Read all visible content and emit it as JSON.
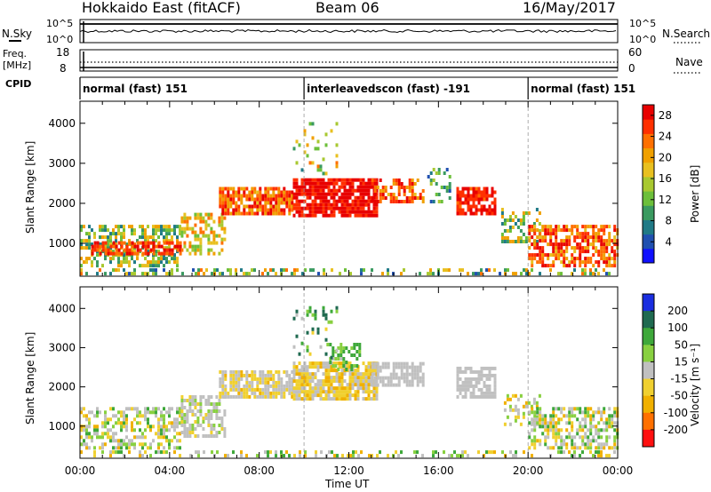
{
  "header": {
    "station": "Hokkaido East (fitACF)",
    "beam": "Beam 06",
    "date": "16/May/2017"
  },
  "noise_panel": {
    "left_label": "N.Sky",
    "left_ticks": [
      "10^5",
      "10^0"
    ],
    "right_label": "N.Search",
    "right_ticks": [
      "10^5",
      "10^0"
    ]
  },
  "freq_panel": {
    "left_label_line1": "Freq.",
    "left_label_line2": "[MHz]",
    "left_ticks": [
      "18",
      "8"
    ],
    "right_label": "Nave",
    "right_ticks": [
      "60",
      "0"
    ]
  },
  "cpid_panel": {
    "label": "CPID",
    "segments": [
      {
        "name": "normal (fast) 151",
        "start_hour": 0,
        "end_hour": 10
      },
      {
        "name": "interleavedscon (fast) -191",
        "start_hour": 10,
        "end_hour": 20
      },
      {
        "name": "normal (fast) 151",
        "start_hour": 20,
        "end_hour": 24
      }
    ]
  },
  "x_axis": {
    "label": "Time UT",
    "ticks": [
      "00:00",
      "04:00",
      "08:00",
      "12:00",
      "16:00",
      "20:00",
      "00:00"
    ]
  },
  "chart_data": [
    {
      "type": "heatmap",
      "title": "",
      "xlabel": "",
      "ylabel": "Slant Range [km]",
      "xlim_hours": [
        0,
        24
      ],
      "ylim": [
        180,
        4550
      ],
      "y_ticks": [
        1000,
        2000,
        3000,
        4000
      ],
      "colorbar": {
        "label": "Power [dB]",
        "range": [
          0,
          30
        ],
        "ticks": [
          4,
          8,
          12,
          16,
          20,
          24,
          28
        ],
        "colors": [
          "#1010ff",
          "#2050b0",
          "#207a86",
          "#3a9a60",
          "#6cbf3a",
          "#a8c830",
          "#e8c020",
          "#f0a000",
          "#ff7000",
          "#ff3000",
          "#e80000"
        ]
      },
      "backscatter_regions": [
        {
          "t0": 0.0,
          "t1": 4.5,
          "r0": 400,
          "r1": 1450,
          "level": 14,
          "spread": 8,
          "density": 0.55
        },
        {
          "t0": 0.5,
          "t1": 4.5,
          "r0": 700,
          "r1": 1050,
          "level": 26,
          "spread": 4,
          "density": 0.65
        },
        {
          "t0": 4.5,
          "t1": 6.5,
          "r0": 700,
          "r1": 1700,
          "level": 18,
          "spread": 6,
          "density": 0.5
        },
        {
          "t0": 6.2,
          "t1": 9.5,
          "r0": 1700,
          "r1": 2400,
          "level": 24,
          "spread": 5,
          "density": 0.8
        },
        {
          "t0": 9.5,
          "t1": 13.2,
          "r0": 1650,
          "r1": 2600,
          "level": 28,
          "spread": 3,
          "density": 0.85
        },
        {
          "t0": 13.0,
          "t1": 15.3,
          "r0": 2000,
          "r1": 2600,
          "level": 24,
          "spread": 6,
          "density": 0.6
        },
        {
          "t0": 15.5,
          "t1": 16.5,
          "r0": 2000,
          "r1": 2800,
          "level": 10,
          "spread": 6,
          "density": 0.35
        },
        {
          "t0": 16.8,
          "t1": 18.5,
          "r0": 1700,
          "r1": 2400,
          "level": 27,
          "spread": 3,
          "density": 0.75
        },
        {
          "t0": 18.8,
          "t1": 20.5,
          "r0": 1000,
          "r1": 1800,
          "level": 14,
          "spread": 8,
          "density": 0.35
        },
        {
          "t0": 20.0,
          "t1": 24.0,
          "r0": 400,
          "r1": 1400,
          "level": 24,
          "spread": 6,
          "density": 0.65
        },
        {
          "t0": 9.5,
          "t1": 11.5,
          "r0": 2700,
          "r1": 4000,
          "level": 16,
          "spread": 8,
          "density": 0.12
        },
        {
          "t0": 0.0,
          "t1": 24.0,
          "r0": 200,
          "r1": 320,
          "level": 14,
          "spread": 10,
          "density": 0.35
        }
      ]
    },
    {
      "type": "heatmap",
      "title": "",
      "xlabel": "",
      "ylabel": "Slant Range [km]",
      "xlim_hours": [
        0,
        24
      ],
      "ylim": [
        180,
        4550
      ],
      "y_ticks": [
        1000,
        2000,
        3000,
        4000
      ],
      "colorbar": {
        "label": "Velocity [m s⁻¹]",
        "range": [
          -250,
          250
        ],
        "ticks": [
          200,
          100,
          50,
          15,
          -15,
          -50,
          -100,
          -200
        ],
        "bands": [
          {
            "from": 150,
            "to": 250,
            "color": "#1a2ee0"
          },
          {
            "from": 75,
            "to": 150,
            "color": "#1f6a50"
          },
          {
            "from": 32,
            "to": 75,
            "color": "#3ea83a"
          },
          {
            "from": 15,
            "to": 32,
            "color": "#88d040"
          },
          {
            "from": -15,
            "to": 15,
            "color": "#c0c0c0"
          },
          {
            "from": -32,
            "to": -15,
            "color": "#f0d030"
          },
          {
            "from": -75,
            "to": -32,
            "color": "#f0b000"
          },
          {
            "from": -150,
            "to": -75,
            "color": "#ff7000"
          },
          {
            "from": -250,
            "to": -150,
            "color": "#ff1010"
          }
        ]
      },
      "backscatter_regions": [
        {
          "t0": 0.0,
          "t1": 4.5,
          "r0": 400,
          "r1": 1450,
          "level": 0,
          "spread": 40,
          "density": 0.5
        },
        {
          "t0": 4.5,
          "t1": 6.5,
          "r0": 700,
          "r1": 1700,
          "level": 0,
          "spread": 20,
          "density": 0.55
        },
        {
          "t0": 6.2,
          "t1": 9.5,
          "r0": 1700,
          "r1": 2400,
          "level": -10,
          "spread": 25,
          "density": 0.8
        },
        {
          "t0": 9.5,
          "t1": 13.2,
          "r0": 1650,
          "r1": 2600,
          "level": -20,
          "spread": 20,
          "density": 0.8
        },
        {
          "t0": 11.0,
          "t1": 12.5,
          "r0": 2400,
          "r1": 3100,
          "level": 40,
          "spread": 30,
          "density": 0.45
        },
        {
          "t0": 13.0,
          "t1": 15.3,
          "r0": 2000,
          "r1": 2600,
          "level": 0,
          "spread": 10,
          "density": 0.7
        },
        {
          "t0": 16.8,
          "t1": 18.5,
          "r0": 1700,
          "r1": 2500,
          "level": 0,
          "spread": 10,
          "density": 0.7
        },
        {
          "t0": 18.8,
          "t1": 20.5,
          "r0": 1000,
          "r1": 1800,
          "level": -10,
          "spread": 40,
          "density": 0.35
        },
        {
          "t0": 20.0,
          "t1": 24.0,
          "r0": 400,
          "r1": 1400,
          "level": 0,
          "spread": 45,
          "density": 0.6
        },
        {
          "t0": 9.5,
          "t1": 11.5,
          "r0": 2700,
          "r1": 4000,
          "level": 60,
          "spread": 80,
          "density": 0.12
        },
        {
          "t0": 0.0,
          "t1": 24.0,
          "r0": 200,
          "r1": 320,
          "level": 0,
          "spread": 60,
          "density": 0.3
        }
      ]
    }
  ]
}
